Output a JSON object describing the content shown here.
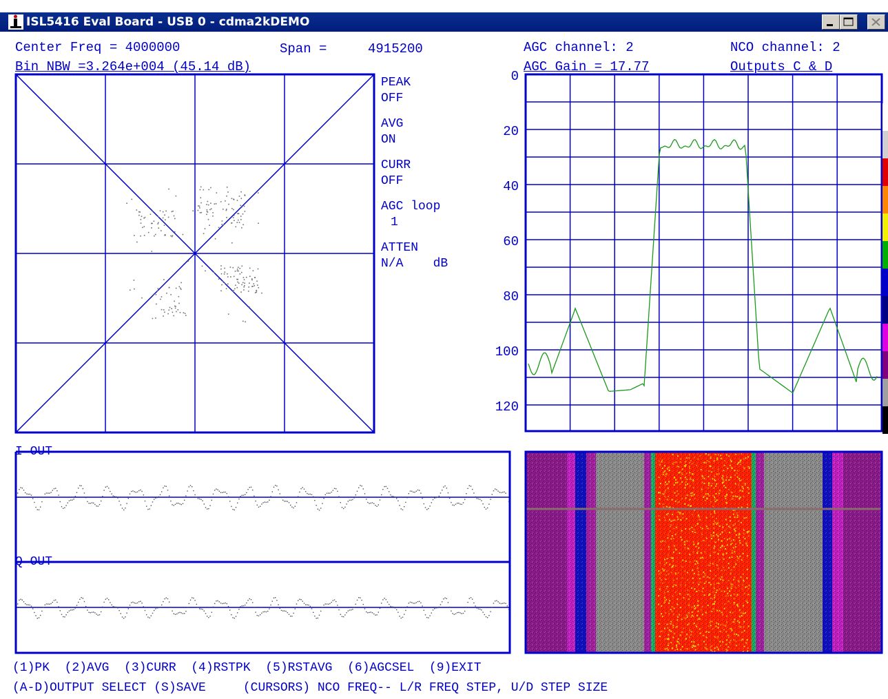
{
  "window": {
    "title": "ISL5416 Eval Board - USB 0 - cdma2kDEMO"
  },
  "header": {
    "center_freq": "Center Freq = 4000000",
    "span_label": "Span =",
    "span_value": "4915200",
    "bin_nbw": "Bin NBW =3.264e+004 (45.14 dB)",
    "agc_channel": "AGC channel: 2",
    "agc_gain": "AGC Gain = 17.77",
    "nco_channel": "NCO channel: 2",
    "outputs": "Outputs C & D"
  },
  "status": {
    "peak_label": "PEAK",
    "peak_value": "OFF",
    "avg_label": "AVG",
    "avg_value": "ON",
    "curr_label": "CURR",
    "curr_value": "OFF",
    "agc_loop_label": "AGC loop",
    "agc_loop_value": "1",
    "atten_label": "ATTEN",
    "atten_value": "N/A    dB"
  },
  "scope": {
    "i_label": "I OUT",
    "q_label": "Q OUT"
  },
  "spectrum": {
    "y_ticks": [
      "0",
      "20",
      "40",
      "60",
      "80",
      "100",
      "120"
    ],
    "trace_color": "#1a9a1a",
    "grid_color": "#0000c8"
  },
  "waterfall": {
    "palette": [
      "#ffffff",
      "#d0d0d0",
      "#e00000",
      "#ff8800",
      "#f0f000",
      "#00b000",
      "#0000c8",
      "#000080",
      "#e000e0",
      "#800080",
      "#a0a0a0",
      "#000000"
    ]
  },
  "footer": {
    "line1": "(1)PK  (2)AVG  (3)CURR  (4)RSTPK  (5)RSTAVG  (6)AGCSEL  (9)EXIT",
    "line2": "(A-D)OUTPUT SELECT (S)SAVE     (CURSORS) NCO FREQ-- L/R FREQ STEP, U/D STEP SIZE"
  }
}
